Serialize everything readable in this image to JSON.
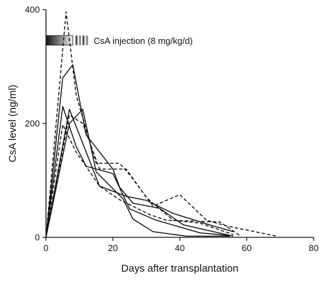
{
  "chart_data": {
    "type": "line",
    "xlabel": "Days after transplantation",
    "ylabel": "CsA level (ng/ml)",
    "xlim": [
      0,
      80
    ],
    "ylim": [
      0,
      400
    ],
    "x_ticks": [
      0,
      20,
      40,
      60,
      80
    ],
    "y_ticks": [
      0,
      200,
      400
    ],
    "x_tick_labels": [
      "0",
      "20",
      "40",
      "60",
      "80"
    ],
    "y_tick_labels": [
      "0",
      "200",
      "400"
    ],
    "grid": false,
    "annotation": {
      "text": "CsA injection (8 mg/kg/d)",
      "x_start": 0,
      "x_solid_end": 8,
      "x_end": 13,
      "y": 346
    },
    "series": [
      {
        "style": "solid",
        "x": [
          0,
          5,
          8,
          12,
          20,
          22,
          26,
          34,
          41,
          56
        ],
        "y": [
          0,
          280,
          303,
          180,
          120,
          88,
          60,
          51,
          22,
          2
        ]
      },
      {
        "style": "solid",
        "x": [
          0,
          5,
          9,
          12,
          20,
          25,
          33,
          46,
          55
        ],
        "y": [
          0,
          230,
          160,
          125,
          112,
          50,
          30,
          8,
          3
        ]
      },
      {
        "style": "solid",
        "x": [
          0,
          7,
          11,
          15,
          23,
          26,
          32,
          42,
          55
        ],
        "y": [
          0,
          200,
          225,
          115,
          68,
          32,
          10,
          2,
          2
        ]
      },
      {
        "style": "solid",
        "x": [
          0,
          7,
          16,
          24,
          30,
          38,
          50,
          56
        ],
        "y": [
          0,
          225,
          90,
          72,
          65,
          42,
          20,
          10
        ]
      },
      {
        "style": "dashed",
        "x": [
          0,
          6,
          9,
          15,
          22,
          25,
          32,
          40,
          48,
          54,
          69
        ],
        "y": [
          0,
          396,
          250,
          130,
          130,
          110,
          55,
          75,
          30,
          20,
          2
        ]
      },
      {
        "style": "dashed",
        "x": [
          0,
          7,
          11,
          16,
          24,
          30,
          38,
          46,
          56
        ],
        "y": [
          0,
          215,
          200,
          120,
          120,
          70,
          30,
          25,
          5
        ]
      },
      {
        "style": "dashed",
        "x": [
          0,
          5,
          9,
          16,
          22,
          31,
          36,
          52,
          58
        ],
        "y": [
          0,
          198,
          150,
          90,
          66,
          40,
          30,
          27,
          3
        ]
      }
    ]
  }
}
